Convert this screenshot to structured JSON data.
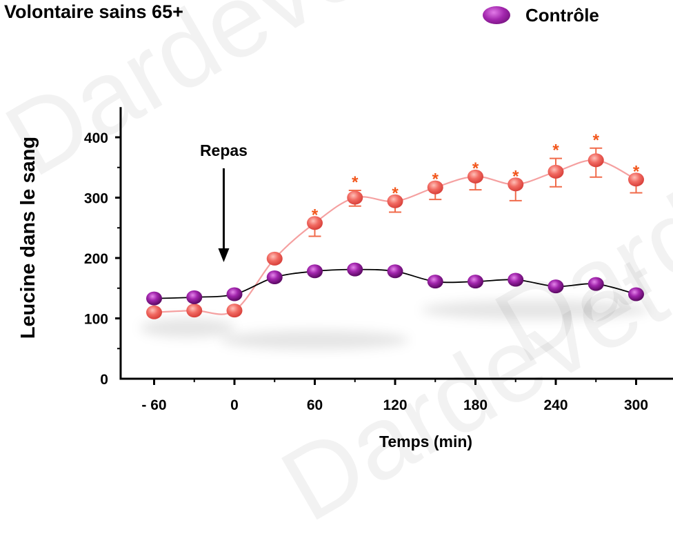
{
  "chart_data": {
    "type": "line",
    "title": "Volontaire sains 65+",
    "xlabel": "Temps (min)",
    "ylabel": "Leucine dans le sang",
    "xlim": [
      -85,
      340
    ],
    "ylim": [
      0,
      450
    ],
    "x_ticks": [
      -60,
      0,
      60,
      120,
      180,
      240,
      300
    ],
    "x_tick_labels": [
      "- 60",
      "0",
      "60",
      "120",
      "180",
      "240",
      "300"
    ],
    "y_ticks": [
      0,
      100,
      200,
      300,
      400
    ],
    "y_tick_labels": [
      "0",
      "100",
      "200",
      "300",
      "400"
    ],
    "legend_position": "top-right",
    "annotation": {
      "text": "Repas",
      "x": -8
    },
    "series": [
      {
        "name": "Contrôle",
        "color": "#9b1fa8",
        "line_color": "#000000",
        "x": [
          -60,
          -30,
          0,
          30,
          60,
          90,
          120,
          150,
          180,
          210,
          240,
          270,
          300
        ],
        "y": [
          133,
          135,
          140,
          168,
          178,
          181,
          178,
          161,
          161,
          164,
          153,
          157,
          140
        ]
      },
      {
        "color": "#f06a6a",
        "line_color": "#f5a0a0",
        "x": [
          -60,
          -30,
          0,
          30,
          60,
          90,
          120,
          150,
          180,
          210,
          240,
          270,
          300
        ],
        "y": [
          110,
          113,
          113,
          199,
          258,
          300,
          294,
          317,
          335,
          322,
          343,
          362,
          330
        ],
        "err_low": [
          null,
          null,
          null,
          null,
          22,
          14,
          18,
          20,
          22,
          27,
          25,
          28,
          22
        ],
        "err_high": [
          null,
          null,
          null,
          null,
          0,
          12,
          0,
          0,
          0,
          0,
          22,
          20,
          0
        ],
        "significance": [
          false,
          false,
          false,
          false,
          true,
          true,
          true,
          true,
          true,
          true,
          true,
          true,
          true
        ],
        "significance_marker": "*"
      }
    ]
  },
  "watermarks": [
    "Dardevet et al.",
    "Dardevet",
    "Dardevet"
  ]
}
